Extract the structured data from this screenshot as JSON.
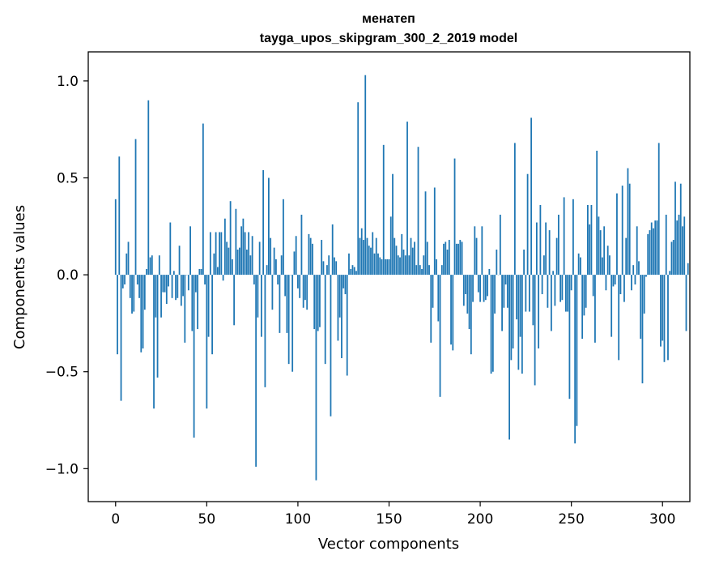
{
  "chart_data": {
    "type": "bar",
    "title": "менатеп",
    "subtitle": "tayga_upos_skipgram_300_2_2019 model",
    "xlabel": "Vector components",
    "ylabel": "Components values",
    "xlim": [
      -15,
      315
    ],
    "ylim": [
      -1.17,
      1.15
    ],
    "xticks": [
      0,
      50,
      100,
      150,
      200,
      250,
      300
    ],
    "xtick_labels": [
      "0",
      "50",
      "100",
      "150",
      "200",
      "250",
      "300"
    ],
    "yticks": [
      -1.0,
      -0.5,
      0.0,
      0.5,
      1.0
    ],
    "ytick_labels": [
      "−1.0",
      "−0.5",
      "0.0",
      "0.5",
      "1.0"
    ],
    "grid": false,
    "bar_color": "#1f77b4",
    "values": [
      0.39,
      -0.41,
      0.61,
      -0.65,
      -0.07,
      -0.05,
      0.11,
      0.17,
      -0.12,
      -0.2,
      -0.19,
      0.7,
      -0.05,
      -0.12,
      -0.4,
      -0.38,
      -0.18,
      0.03,
      0.9,
      0.09,
      0.1,
      -0.69,
      -0.22,
      -0.53,
      0.1,
      -0.22,
      -0.09,
      -0.09,
      -0.15,
      -0.06,
      0.27,
      -0.12,
      0.02,
      -0.13,
      -0.12,
      0.15,
      -0.16,
      -0.11,
      -0.35,
      0.0,
      -0.08,
      0.25,
      -0.29,
      -0.84,
      -0.09,
      -0.28,
      0.03,
      0.03,
      0.78,
      -0.05,
      -0.69,
      -0.32,
      0.22,
      -0.41,
      0.11,
      0.22,
      0.04,
      0.22,
      0.22,
      -0.03,
      0.29,
      0.17,
      0.14,
      0.38,
      0.08,
      -0.26,
      0.34,
      0.13,
      0.14,
      0.25,
      0.29,
      0.22,
      0.13,
      0.22,
      0.1,
      0.2,
      -0.05,
      -0.99,
      -0.22,
      0.17,
      -0.32,
      0.54,
      -0.58,
      0.05,
      0.5,
      0.19,
      -0.18,
      0.14,
      0.08,
      -0.05,
      -0.3,
      0.1,
      0.39,
      -0.11,
      -0.3,
      -0.46,
      0.0,
      -0.5,
      0.12,
      0.2,
      -0.07,
      -0.12,
      0.31,
      -0.17,
      -0.13,
      -0.18,
      0.21,
      0.19,
      0.16,
      -0.28,
      -1.06,
      -0.29,
      -0.27,
      0.18,
      0.07,
      -0.46,
      0.05,
      0.1,
      -0.73,
      0.26,
      0.09,
      0.07,
      -0.34,
      -0.22,
      -0.43,
      -0.07,
      -0.1,
      -0.52,
      0.11,
      0.03,
      0.05,
      0.04,
      0.02,
      0.89,
      0.19,
      0.24,
      0.18,
      1.03,
      0.19,
      0.15,
      0.14,
      0.22,
      0.11,
      0.19,
      0.11,
      0.09,
      0.08,
      0.67,
      0.08,
      0.08,
      0.08,
      0.3,
      0.52,
      0.19,
      0.15,
      0.1,
      0.09,
      0.21,
      0.13,
      0.1,
      0.79,
      0.1,
      0.19,
      0.14,
      0.17,
      0.05,
      0.66,
      0.05,
      0.03,
      0.1,
      0.43,
      0.17,
      0.05,
      -0.35,
      -0.17,
      0.45,
      0.08,
      -0.24,
      -0.63,
      0.05,
      0.16,
      0.17,
      0.13,
      0.18,
      -0.36,
      -0.39,
      0.6,
      0.16,
      0.16,
      0.18,
      0.17,
      -0.16,
      -0.1,
      -0.2,
      -0.28,
      -0.41,
      -0.14,
      0.25,
      0.19,
      -0.09,
      -0.14,
      0.25,
      -0.14,
      -0.13,
      -0.11,
      0.03,
      -0.51,
      -0.5,
      -0.2,
      0.13,
      0.0,
      0.31,
      -0.29,
      -0.17,
      -0.05,
      -0.17,
      -0.85,
      -0.44,
      -0.38,
      0.68,
      -0.23,
      -0.49,
      -0.32,
      -0.51,
      0.13,
      -0.19,
      0.52,
      -0.19,
      0.81,
      -0.26,
      -0.57,
      0.27,
      -0.38,
      0.36,
      -0.1,
      0.1,
      0.27,
      -0.17,
      0.23,
      -0.29,
      0.02,
      -0.16,
      0.19,
      0.31,
      -0.14,
      -0.13,
      0.4,
      -0.19,
      -0.19,
      -0.64,
      -0.08,
      0.39,
      -0.87,
      -0.78,
      0.11,
      0.09,
      -0.33,
      -0.21,
      -0.17,
      0.36,
      0.26,
      0.36,
      -0.11,
      -0.35,
      0.64,
      0.3,
      0.23,
      0.09,
      0.25,
      -0.08,
      0.15,
      0.1,
      -0.32,
      -0.06,
      -0.05,
      0.42,
      -0.44,
      -0.1,
      0.46,
      -0.14,
      0.19,
      0.55,
      0.47,
      -0.08,
      0.05,
      -0.05,
      0.25,
      0.07,
      -0.33,
      -0.56,
      -0.2,
      -0.01,
      0.21,
      0.23,
      0.27,
      0.24,
      0.28,
      0.28,
      0.68,
      -0.37,
      -0.34,
      -0.45,
      0.31,
      -0.44,
      0.02,
      0.17,
      0.18,
      0.48,
      0.28,
      0.31,
      0.47,
      0.25,
      0.3,
      -0.29,
      0.06
    ]
  }
}
